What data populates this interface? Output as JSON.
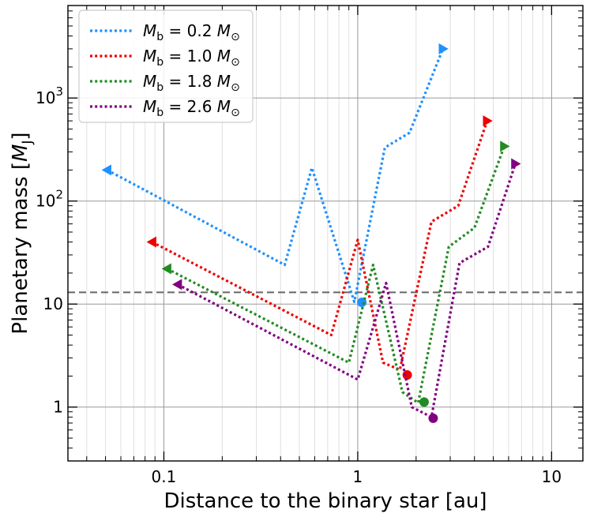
{
  "chart_data": {
    "type": "line",
    "xlabel": "Distance to the binary star [au]",
    "ylabel": "Planetary mass [M_J]",
    "ylabel_parts": {
      "main": "Planetary mass [",
      "sym": "M",
      "sub": "J",
      "end": "]"
    },
    "x_scale": "log",
    "y_scale": "log",
    "xlim": [
      0.032,
      14.5
    ],
    "ylim": [
      0.3,
      7900
    ],
    "x_ticks": [
      {
        "value": 0.1,
        "label": "0.1"
      },
      {
        "value": 1,
        "label": "1"
      },
      {
        "value": 10,
        "label": "10"
      }
    ],
    "y_ticks": [
      {
        "value": 1,
        "label": "1",
        "exp": ""
      },
      {
        "value": 10,
        "label": "10",
        "exp": ""
      },
      {
        "value": 100,
        "label": "10",
        "exp": "2"
      },
      {
        "value": 1000,
        "label": "10",
        "exp": "3"
      }
    ],
    "grid": true,
    "reference_line": {
      "y": 13,
      "style": "dashed",
      "color": "#666666"
    },
    "legend_position": "upper-left",
    "series": [
      {
        "name": "M_b = 0.2 M_sun",
        "legend": {
          "m": "M",
          "sub": "b",
          "eq": " = 0.2 ",
          "unit": "M",
          "unit_sub": "⊙"
        },
        "color": "#1e90ff",
        "x": [
          0.051,
          0.42,
          0.58,
          0.96,
          1.38,
          1.85,
          2.75
        ],
        "y": [
          200,
          24,
          210,
          10.5,
          330,
          460,
          3000
        ],
        "start_marker": {
          "x": 0.051,
          "y": 200,
          "shape": "triangle-left"
        },
        "end_marker": {
          "x": 2.75,
          "y": 3000,
          "shape": "triangle-right"
        },
        "dot_marker": {
          "x": 1.05,
          "y": 10.4
        }
      },
      {
        "name": "M_b = 1.0 M_sun",
        "legend": {
          "m": "M",
          "sub": "b",
          "eq": " = 1.0 ",
          "unit": "M",
          "unit_sub": "⊙"
        },
        "color": "#ee0000",
        "x": [
          0.087,
          0.73,
          1.0,
          1.35,
          1.65,
          2.4,
          3.3,
          4.65
        ],
        "y": [
          40,
          5,
          42,
          2.7,
          2.3,
          63,
          90,
          600
        ],
        "start_marker": {
          "x": 0.087,
          "y": 40,
          "shape": "triangle-left"
        },
        "end_marker": {
          "x": 4.65,
          "y": 600,
          "shape": "triangle-right"
        },
        "dot_marker": {
          "x": 1.8,
          "y": 2.05
        }
      },
      {
        "name": "M_b = 1.8 M_sun",
        "legend": {
          "m": "M",
          "sub": "b",
          "eq": " = 1.8 ",
          "unit": "M",
          "unit_sub": "⊙"
        },
        "color": "#228b22",
        "x": [
          0.104,
          0.9,
          1.2,
          1.7,
          2.05,
          2.95,
          4.0,
          5.7
        ],
        "y": [
          22,
          2.7,
          24,
          1.4,
          1.1,
          36,
          55,
          340
        ],
        "start_marker": {
          "x": 0.104,
          "y": 22,
          "shape": "triangle-left"
        },
        "end_marker": {
          "x": 5.7,
          "y": 340,
          "shape": "triangle-right"
        },
        "dot_marker": {
          "x": 2.2,
          "y": 1.12
        }
      },
      {
        "name": "M_b = 2.6 M_sun",
        "legend": {
          "m": "M",
          "sub": "b",
          "eq": " = 2.6 ",
          "unit": "M",
          "unit_sub": "⊙"
        },
        "color": "#800080",
        "x": [
          0.118,
          1.0,
          1.4,
          1.9,
          2.4,
          3.35,
          4.7,
          6.5
        ],
        "y": [
          15.5,
          1.85,
          16,
          1.0,
          0.8,
          25,
          36,
          230
        ],
        "start_marker": {
          "x": 0.118,
          "y": 15.5,
          "shape": "triangle-left"
        },
        "end_marker": {
          "x": 6.5,
          "y": 230,
          "shape": "triangle-right"
        },
        "dot_marker": {
          "x": 2.45,
          "y": 0.78
        }
      }
    ]
  }
}
